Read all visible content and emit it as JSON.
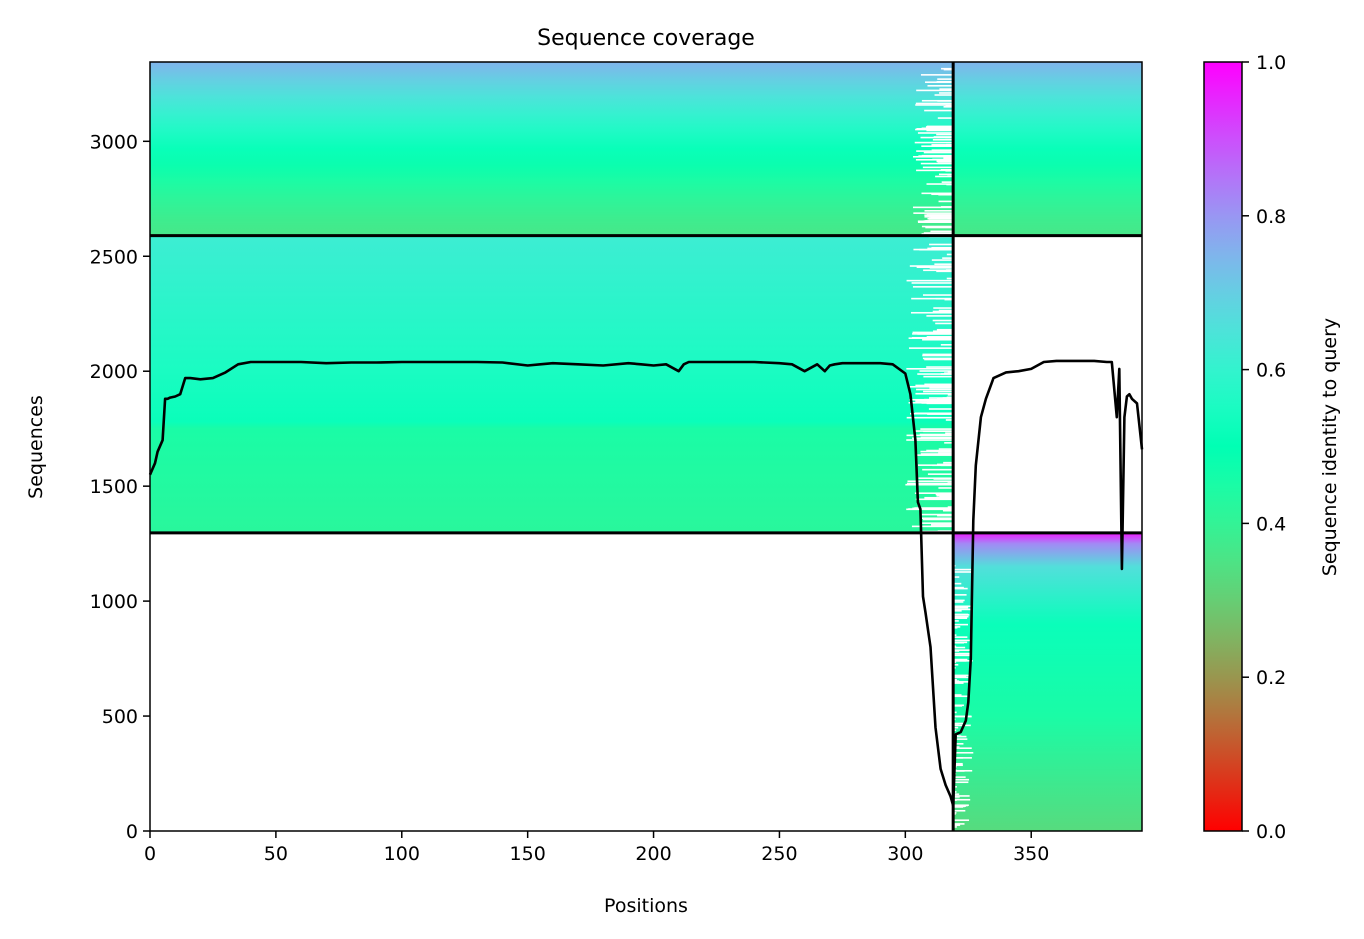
{
  "chart_data": {
    "type": "heatmap",
    "title": "Sequence coverage",
    "xlabel": "Positions",
    "ylabel": "Sequences",
    "xlim": [
      0,
      394
    ],
    "ylim": [
      0,
      3345
    ],
    "x_ticks": [
      0,
      50,
      100,
      150,
      200,
      250,
      300,
      350
    ],
    "y_ticks": [
      0,
      500,
      1000,
      1500,
      2000,
      2500,
      3000
    ],
    "grid": false,
    "legend": "none",
    "colormap": "rainbow_r",
    "colorbar": {
      "label": "Sequence identity to query",
      "range": [
        0,
        1
      ],
      "ticks": [
        "0.0",
        "0.2",
        "0.4",
        "0.6",
        "0.8",
        "1.0"
      ]
    },
    "chain_boundaries": {
      "x": [
        319
      ],
      "y": [
        1297,
        2590
      ]
    },
    "blocks": [
      {
        "name": "paired",
        "x_range": [
          0,
          394
        ],
        "y_range": [
          2590,
          3345
        ],
        "identity_bottom": 0.36,
        "identity_top": 0.75
      },
      {
        "name": "unpaired chain A",
        "x_range": [
          0,
          319
        ],
        "y_range": [
          1297,
          2590
        ],
        "identity_stops": [
          {
            "row": 1297,
            "identity": 0.42
          },
          {
            "row": 1750,
            "identity": 0.45
          },
          {
            "row": 1780,
            "identity": 0.52
          },
          {
            "row": 2000,
            "identity": 0.55
          },
          {
            "row": 2590,
            "identity": 0.62
          }
        ]
      },
      {
        "name": "unpaired chain B",
        "x_range": [
          319,
          394
        ],
        "y_range": [
          0,
          1297
        ],
        "identity_stops": [
          {
            "row": 0,
            "identity": 0.33
          },
          {
            "row": 500,
            "identity": 0.45
          },
          {
            "row": 900,
            "identity": 0.52
          },
          {
            "row": 1150,
            "identity": 0.66
          },
          {
            "row": 1250,
            "identity": 0.82
          },
          {
            "row": 1297,
            "identity": 0.97
          }
        ]
      }
    ],
    "series": [
      {
        "type": "line",
        "color": "#000000",
        "x": [
          0,
          2,
          3,
          5,
          6,
          7,
          8,
          10,
          12,
          14,
          16,
          20,
          25,
          30,
          35,
          40,
          50,
          60,
          70,
          80,
          90,
          100,
          110,
          120,
          130,
          140,
          150,
          155,
          160,
          170,
          180,
          190,
          195,
          200,
          205,
          210,
          212,
          214,
          216,
          220,
          230,
          240,
          250,
          255,
          260,
          265,
          268,
          270,
          272,
          275,
          280,
          285,
          290,
          295,
          300,
          302,
          304,
          305,
          306,
          307,
          308,
          310,
          312,
          314,
          316,
          318,
          319,
          320,
          322,
          324,
          325,
          326,
          327,
          328,
          330,
          332,
          335,
          340,
          345,
          350,
          355,
          360,
          365,
          370,
          375,
          380,
          382,
          384,
          385,
          386,
          387,
          388,
          389,
          390,
          392,
          394
        ],
        "y": [
          1550,
          1600,
          1650,
          1700,
          1880,
          1880,
          1885,
          1890,
          1900,
          1970,
          1970,
          1965,
          1970,
          1995,
          2030,
          2040,
          2040,
          2040,
          2035,
          2038,
          2038,
          2040,
          2040,
          2040,
          2040,
          2038,
          2025,
          2030,
          2035,
          2030,
          2025,
          2035,
          2030,
          2025,
          2030,
          2000,
          2030,
          2040,
          2040,
          2040,
          2040,
          2040,
          2035,
          2030,
          2000,
          2030,
          2000,
          2025,
          2030,
          2035,
          2035,
          2035,
          2035,
          2030,
          1990,
          1900,
          1700,
          1430,
          1400,
          1020,
          950,
          800,
          450,
          270,
          200,
          150,
          110,
          420,
          430,
          480,
          560,
          750,
          1350,
          1590,
          1800,
          1880,
          1970,
          1995,
          2000,
          2010,
          2040,
          2045,
          2045,
          2045,
          2045,
          2040,
          2040,
          1800,
          2010,
          1140,
          1800,
          1890,
          1900,
          1880,
          1860,
          1660
        ]
      }
    ]
  }
}
